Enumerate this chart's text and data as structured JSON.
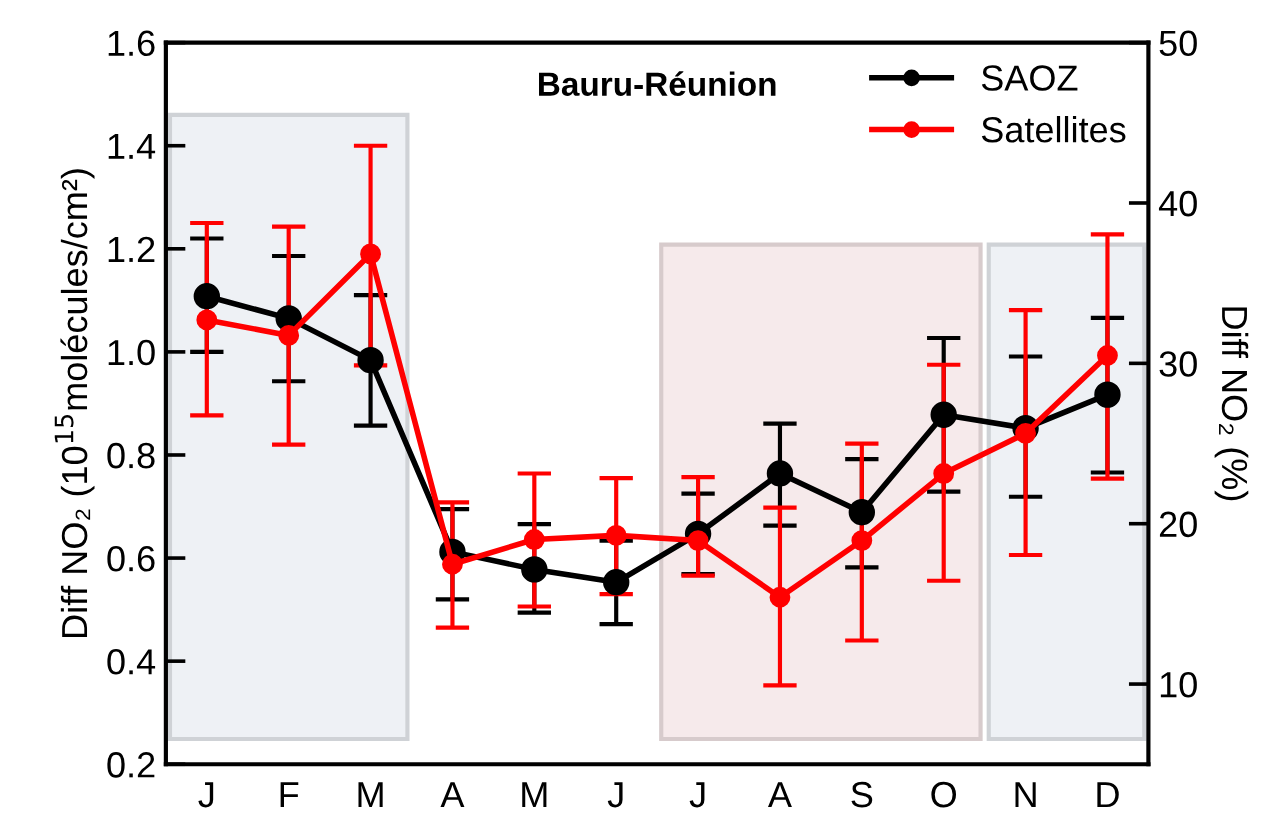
{
  "chart_data": {
    "type": "line",
    "title": "Bauru-Réunion",
    "ylabel": "Diff NO₂ (10$^{15}$molécules/cm²)",
    "y2label": "Diff NO₂ (%)",
    "categories": [
      "J",
      "F",
      "M",
      "A",
      "M",
      "J",
      "J",
      "A",
      "S",
      "O",
      "N",
      "D"
    ],
    "series": [
      {
        "name": "SAOZ",
        "color": "#000000",
        "values": [
          1.108,
          1.065,
          0.984,
          0.612,
          0.578,
          0.553,
          0.647,
          0.764,
          0.689,
          0.878,
          0.852,
          0.917
        ],
        "errors": [
          [
            1.0,
            1.22
          ],
          [
            0.943,
            1.186
          ],
          [
            0.857,
            1.11
          ],
          [
            0.52,
            0.695
          ],
          [
            0.494,
            0.666
          ],
          [
            0.472,
            0.634
          ],
          [
            0.569,
            0.725
          ],
          [
            0.663,
            0.861
          ],
          [
            0.582,
            0.792
          ],
          [
            0.729,
            1.027
          ],
          [
            0.719,
            0.991
          ],
          [
            0.766,
            1.066
          ]
        ]
      },
      {
        "name": "Satellites",
        "color": "#ff0000",
        "values": [
          1.062,
          1.032,
          1.19,
          0.588,
          0.636,
          0.644,
          0.634,
          0.524,
          0.634,
          0.764,
          0.842,
          0.993
        ],
        "errors": [
          [
            0.877,
            1.25
          ],
          [
            0.82,
            1.243
          ],
          [
            0.974,
            1.4
          ],
          [
            0.465,
            0.708
          ],
          [
            0.506,
            0.764
          ],
          [
            0.53,
            0.755
          ],
          [
            0.566,
            0.757
          ],
          [
            0.353,
            0.698
          ],
          [
            0.44,
            0.822
          ],
          [
            0.556,
            0.975
          ],
          [
            0.606,
            1.081
          ],
          [
            0.754,
            1.228
          ]
        ]
      }
    ],
    "ylim": [
      0.2,
      1.6
    ],
    "yticks": [
      0.2,
      0.4,
      0.6,
      0.8,
      {
        "value": 1,
        "label": "1.0"
      },
      1.2,
      1.4,
      1.6
    ],
    "y2lim": [
      5,
      50
    ],
    "y2ticks": [
      10,
      20,
      30,
      40,
      50
    ],
    "marker": "circle",
    "line_style": "solid",
    "legend": "top right",
    "grid": false
  }
}
